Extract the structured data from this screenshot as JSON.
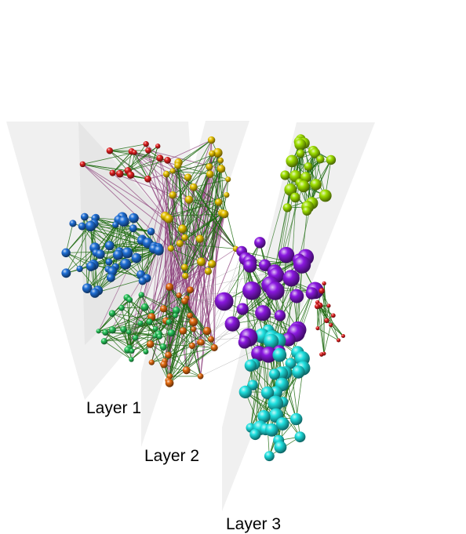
{
  "layers": [
    {
      "label": "Layer 1"
    },
    {
      "label": "Layer 2"
    },
    {
      "label": "Layer 3"
    }
  ],
  "colors": {
    "plane": "#d0d0d0",
    "intra_edge": "#1e6b10",
    "inter_edge": "#8a3a78",
    "red": "#e02020",
    "yellow": "#e6c200",
    "lime": "#9fe000",
    "blue": "#1f6fd6",
    "green": "#27c45a",
    "orange": "#e26a10",
    "purple": "#8a18e0",
    "cyan": "#1fe0e0"
  },
  "communities": [
    "red",
    "yellow",
    "lime",
    "blue",
    "green",
    "orange",
    "purple",
    "cyan"
  ]
}
